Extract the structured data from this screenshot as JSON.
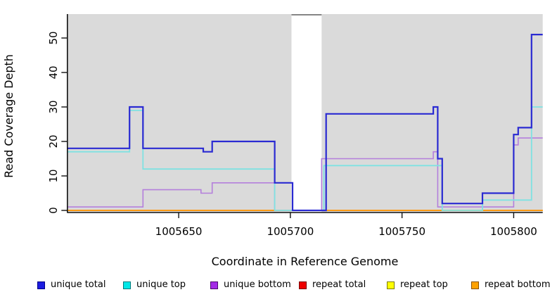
{
  "y_axis": {
    "label": "Read Coverage Depth",
    "ticks": [
      0,
      10,
      20,
      30,
      40,
      50
    ]
  },
  "x_axis": {
    "label": "Coordinate in Reference Genome",
    "ticks": [
      1005650,
      1005700,
      1005750,
      1005800
    ]
  },
  "legend": [
    {
      "label": "unique total",
      "color": "#1c1ce0",
      "border": "#000088"
    },
    {
      "label": "unique top",
      "color": "#00e8e8",
      "border": "#007a7a"
    },
    {
      "label": "unique bottom",
      "color": "#a32ae6",
      "border": "#4b0a6e"
    },
    {
      "label": "repeat total",
      "color": "#ee0000",
      "border": "#7a0000"
    },
    {
      "label": "repeat top",
      "color": "#ffff00",
      "border": "#7a7a00"
    },
    {
      "label": "repeat bottom",
      "color": "#ffa200",
      "border": "#8a5200"
    }
  ],
  "colors": {
    "plot_bg": "#dadada",
    "gap_fill": "#ffffff",
    "gap_cap": "#858585",
    "axis": "#111111",
    "text": "#000000"
  },
  "chart_data": {
    "type": "line",
    "step": true,
    "title": "",
    "xlabel": "Coordinate in Reference Genome",
    "ylabel": "Read Coverage Depth",
    "xlim": [
      1005600,
      1005813
    ],
    "ylim": [
      0,
      57
    ],
    "grid": false,
    "legend_position": "bottom",
    "gap_band": {
      "from": 1005700.5,
      "to": 1005714
    },
    "series": [
      {
        "name": "repeat total",
        "color": "#dd0000",
        "width": 1.6,
        "points": [
          [
            1005600,
            0
          ]
        ]
      },
      {
        "name": "repeat top",
        "color": "#ffff00",
        "width": 1.6,
        "points": [
          [
            1005600,
            0
          ]
        ]
      },
      {
        "name": "repeat bottom",
        "color": "#ff9912",
        "width": 2,
        "points": [
          [
            1005600,
            0
          ]
        ]
      },
      {
        "name": "unique bottom",
        "color": "#b47fdc",
        "width": 1.6,
        "points": [
          [
            1005600,
            1
          ],
          [
            1005634,
            6
          ],
          [
            1005660,
            5
          ],
          [
            1005665,
            8
          ],
          [
            1005693,
            0
          ],
          [
            1005714,
            15
          ],
          [
            1005764,
            17
          ],
          [
            1005766,
            1
          ],
          [
            1005800,
            19
          ],
          [
            1005802,
            21
          ]
        ]
      },
      {
        "name": "unique top",
        "color": "#7fe2e2",
        "width": 1.8,
        "points": [
          [
            1005600,
            17
          ],
          [
            1005628,
            29
          ],
          [
            1005634,
            12
          ],
          [
            1005693,
            0
          ],
          [
            1005715,
            13
          ],
          [
            1005768,
            0
          ],
          [
            1005786,
            3
          ],
          [
            1005808,
            30
          ]
        ]
      },
      {
        "name": "unique total",
        "color": "#2a2ad2",
        "width": 2.2,
        "points": [
          [
            1005600,
            18
          ],
          [
            1005628,
            30
          ],
          [
            1005634,
            18
          ],
          [
            1005661,
            17
          ],
          [
            1005665,
            20
          ],
          [
            1005693,
            8
          ],
          [
            1005701,
            0
          ],
          [
            1005716,
            28
          ],
          [
            1005764,
            30
          ],
          [
            1005766,
            15
          ],
          [
            1005768,
            2
          ],
          [
            1005786,
            5
          ],
          [
            1005800,
            22
          ],
          [
            1005802,
            24
          ],
          [
            1005808,
            51
          ]
        ]
      }
    ]
  }
}
